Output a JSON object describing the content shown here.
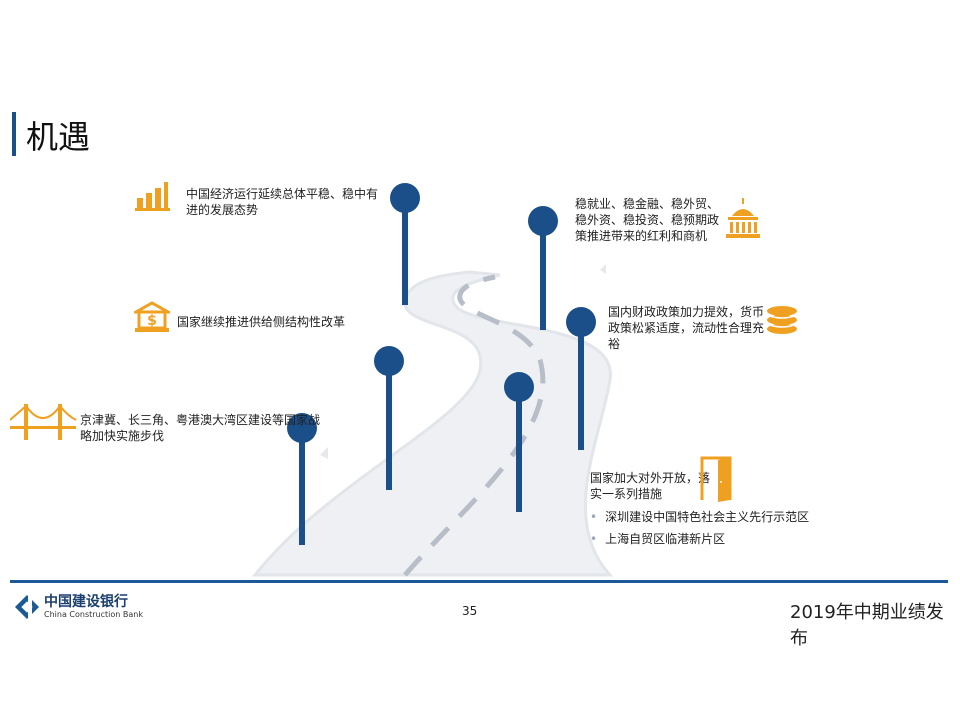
{
  "title": "机遇",
  "items": [
    {
      "text": "中国经济运行延续总体平稳、稳中有进的发展态势",
      "icon": "bar-chart-icon"
    },
    {
      "text": "国家继续推进供给侧结构性改革",
      "icon": "bank-dollar-icon"
    },
    {
      "text": "京津冀、长三角、粤港澳大湾区建设等国家战略加快实施步伐",
      "icon": "bridge-icon"
    },
    {
      "text": "稳就业、稳金融、稳外贸、稳外资、稳投资、稳预期政策推进带来的红利和商机",
      "icon": "capitol-building-icon"
    },
    {
      "text": "国内财政政策加力提效，货币政策松紧适度，流动性合理充裕",
      "icon": "coins-icon"
    },
    {
      "text": "国家加大对外开放，落实一系列措施",
      "icon": "door-icon",
      "bullets": [
        "深圳建设中国特色社会主义先行示范区",
        "上海自贸区临港新片区"
      ]
    }
  ],
  "footer": {
    "logo_cn": "中国建设银行",
    "logo_en": "China Construction Bank",
    "page": "35",
    "event": "2019年中期业绩发布"
  },
  "colors": {
    "accent": "#f0a020",
    "pin": "#1b4f8a",
    "line": "#1b5a96"
  }
}
